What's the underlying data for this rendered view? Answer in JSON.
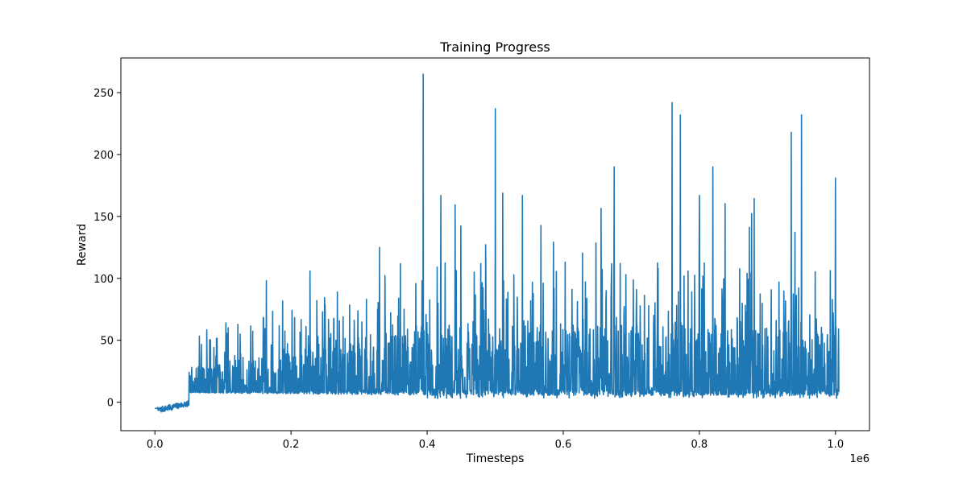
{
  "chart_data": {
    "type": "line",
    "title": "Training Progress",
    "xlabel": "Timesteps",
    "ylabel": "Reward",
    "x_scale_label": "1e6",
    "xlim": [
      -0.05,
      1.05
    ],
    "ylim": [
      -23,
      278
    ],
    "x_ticks": [
      0.0,
      0.2,
      0.4,
      0.6,
      0.8,
      1.0
    ],
    "x_tick_labels": [
      "0.0",
      "0.2",
      "0.4",
      "0.6",
      "0.8",
      "1.0"
    ],
    "y_ticks": [
      0,
      50,
      100,
      150,
      200,
      250
    ],
    "y_tick_labels": [
      "0",
      "50",
      "100",
      "150",
      "200",
      "250"
    ],
    "grid": false,
    "series": [
      {
        "name": "reward",
        "color": "#1f77b4",
        "x_start": 0.0,
        "x_end": 1.005,
        "sample_count": 2400,
        "seed": 7,
        "approx_floor": 8,
        "peaks": [
          {
            "x": 0.083,
            "y": 27
          },
          {
            "x": 0.228,
            "y": 106
          },
          {
            "x": 0.268,
            "y": 89
          },
          {
            "x": 0.33,
            "y": 125
          },
          {
            "x": 0.394,
            "y": 265
          },
          {
            "x": 0.42,
            "y": 167
          },
          {
            "x": 0.5,
            "y": 237
          },
          {
            "x": 0.54,
            "y": 167
          },
          {
            "x": 0.675,
            "y": 190
          },
          {
            "x": 0.76,
            "y": 242
          },
          {
            "x": 0.772,
            "y": 232
          },
          {
            "x": 0.8,
            "y": 167
          },
          {
            "x": 0.82,
            "y": 190
          },
          {
            "x": 0.935,
            "y": 218
          },
          {
            "x": 0.95,
            "y": 232
          },
          {
            "x": 1.0,
            "y": 181
          }
        ]
      }
    ]
  }
}
